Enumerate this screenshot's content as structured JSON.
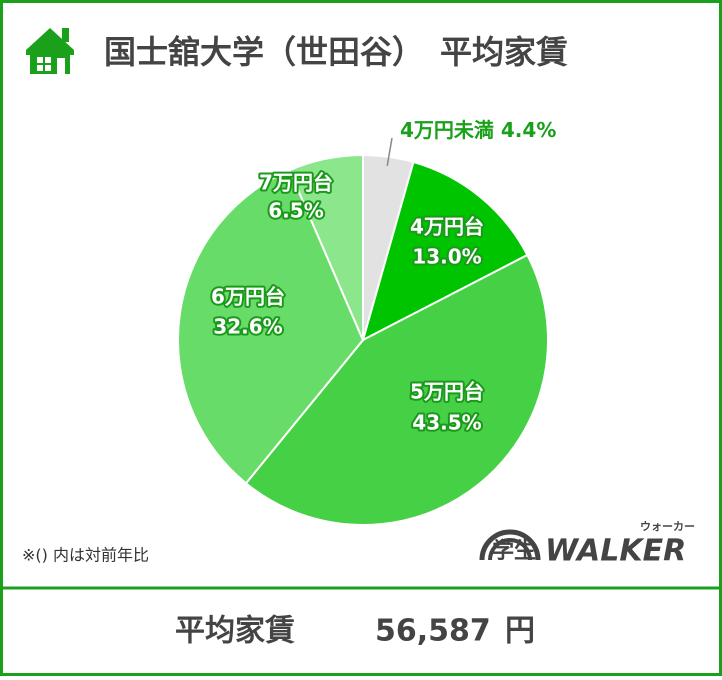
{
  "chart_data": {
    "type": "pie",
    "title": "国士舘大学（世田谷）　平均家賃",
    "categories": [
      "4万円未満",
      "4万円台",
      "5万円台",
      "6万円台",
      "7万円台"
    ],
    "values": [
      4.4,
      13.0,
      43.5,
      32.6,
      6.5
    ],
    "value_labels": [
      "4.4%",
      "13.0%",
      "43.5%",
      "32.6%",
      "6.5%"
    ],
    "colors": [
      "#e2e2e2",
      "#00c400",
      "#46d046",
      "#68dc68",
      "#8ce68c"
    ],
    "note": "※()  内は対前年比"
  },
  "logo": {
    "text": "学生",
    "brand": "WALKER",
    "reading": "ウォーカー"
  },
  "footer": {
    "label": "平均家賃",
    "amount": "56,587",
    "unit": "円"
  }
}
